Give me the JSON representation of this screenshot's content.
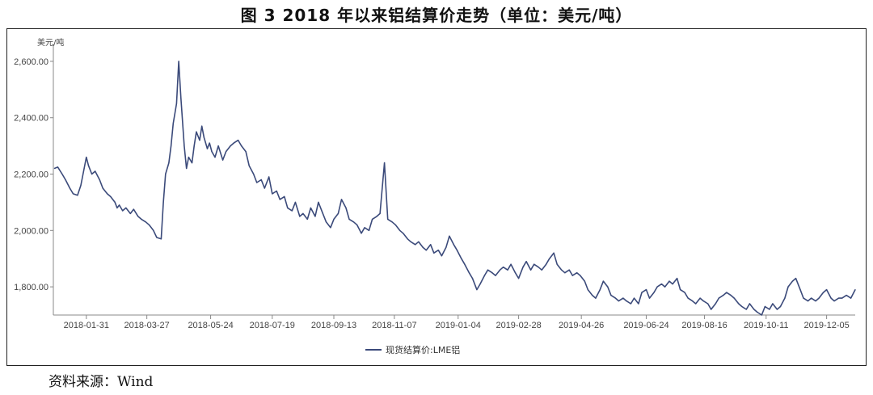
{
  "title": "图 3   2018 年以来铝结算价走势（单位：美元/吨）",
  "source": "资料来源：Wind",
  "colors": {
    "line": "#3b4a7a",
    "axis": "#888888"
  },
  "chart_data": {
    "type": "line",
    "unit_label": "美元/吨",
    "ylim": [
      1700,
      2660
    ],
    "yticks": [
      1800,
      2000,
      2200,
      2400,
      2600
    ],
    "ytick_labels": [
      "1,800.00",
      "2,000.00",
      "2,200.00",
      "2,400.00",
      "2,600.00"
    ],
    "xlim": [
      "2018-01-01",
      "2019-12-31"
    ],
    "xtick_labels": [
      "2018-01-31",
      "2018-03-27",
      "2018-05-24",
      "2018-07-19",
      "2018-09-13",
      "2018-11-07",
      "2019-01-04",
      "2019-02-28",
      "2019-04-26",
      "2019-06-24",
      "2019-08-16",
      "2019-10-11",
      "2019-12-05"
    ],
    "legend": "bottom-center",
    "grid": false,
    "series": [
      {
        "name": "现货结算价:LME铝",
        "points": [
          [
            "2018-01-02",
            2220
          ],
          [
            "2018-01-05",
            2225
          ],
          [
            "2018-01-09",
            2200
          ],
          [
            "2018-01-12",
            2180
          ],
          [
            "2018-01-16",
            2150
          ],
          [
            "2018-01-19",
            2130
          ],
          [
            "2018-01-23",
            2125
          ],
          [
            "2018-01-26",
            2160
          ],
          [
            "2018-01-29",
            2220
          ],
          [
            "2018-01-31",
            2260
          ],
          [
            "2018-02-02",
            2230
          ],
          [
            "2018-02-05",
            2200
          ],
          [
            "2018-02-08",
            2210
          ],
          [
            "2018-02-12",
            2180
          ],
          [
            "2018-02-15",
            2150
          ],
          [
            "2018-02-19",
            2130
          ],
          [
            "2018-02-22",
            2120
          ],
          [
            "2018-02-26",
            2100
          ],
          [
            "2018-02-28",
            2080
          ],
          [
            "2018-03-02",
            2090
          ],
          [
            "2018-03-05",
            2070
          ],
          [
            "2018-03-08",
            2080
          ],
          [
            "2018-03-12",
            2060
          ],
          [
            "2018-03-15",
            2075
          ],
          [
            "2018-03-19",
            2050
          ],
          [
            "2018-03-22",
            2040
          ],
          [
            "2018-03-26",
            2030
          ],
          [
            "2018-03-29",
            2020
          ],
          [
            "2018-04-02",
            2000
          ],
          [
            "2018-04-05",
            1975
          ],
          [
            "2018-04-09",
            1970
          ],
          [
            "2018-04-11",
            2100
          ],
          [
            "2018-04-13",
            2200
          ],
          [
            "2018-04-16",
            2240
          ],
          [
            "2018-04-18",
            2300
          ],
          [
            "2018-04-20",
            2380
          ],
          [
            "2018-04-23",
            2450
          ],
          [
            "2018-04-25",
            2600
          ],
          [
            "2018-04-27",
            2470
          ],
          [
            "2018-04-30",
            2300
          ],
          [
            "2018-05-02",
            2220
          ],
          [
            "2018-05-04",
            2260
          ],
          [
            "2018-05-07",
            2240
          ],
          [
            "2018-05-09",
            2300
          ],
          [
            "2018-05-11",
            2350
          ],
          [
            "2018-05-14",
            2320
          ],
          [
            "2018-05-16",
            2370
          ],
          [
            "2018-05-18",
            2330
          ],
          [
            "2018-05-21",
            2290
          ],
          [
            "2018-05-23",
            2310
          ],
          [
            "2018-05-25",
            2280
          ],
          [
            "2018-05-28",
            2260
          ],
          [
            "2018-05-31",
            2300
          ],
          [
            "2018-06-04",
            2250
          ],
          [
            "2018-06-07",
            2280
          ],
          [
            "2018-06-11",
            2300
          ],
          [
            "2018-06-14",
            2310
          ],
          [
            "2018-06-18",
            2320
          ],
          [
            "2018-06-21",
            2300
          ],
          [
            "2018-06-25",
            2280
          ],
          [
            "2018-06-28",
            2230
          ],
          [
            "2018-07-02",
            2200
          ],
          [
            "2018-07-05",
            2170
          ],
          [
            "2018-07-09",
            2180
          ],
          [
            "2018-07-12",
            2150
          ],
          [
            "2018-07-16",
            2190
          ],
          [
            "2018-07-19",
            2130
          ],
          [
            "2018-07-23",
            2140
          ],
          [
            "2018-07-26",
            2110
          ],
          [
            "2018-07-30",
            2120
          ],
          [
            "2018-08-02",
            2080
          ],
          [
            "2018-08-06",
            2070
          ],
          [
            "2018-08-09",
            2100
          ],
          [
            "2018-08-13",
            2050
          ],
          [
            "2018-08-16",
            2060
          ],
          [
            "2018-08-20",
            2040
          ],
          [
            "2018-08-23",
            2080
          ],
          [
            "2018-08-27",
            2050
          ],
          [
            "2018-08-30",
            2100
          ],
          [
            "2018-09-03",
            2060
          ],
          [
            "2018-09-06",
            2030
          ],
          [
            "2018-09-10",
            2010
          ],
          [
            "2018-09-13",
            2040
          ],
          [
            "2018-09-17",
            2060
          ],
          [
            "2018-09-20",
            2110
          ],
          [
            "2018-09-24",
            2080
          ],
          [
            "2018-09-27",
            2040
          ],
          [
            "2018-10-01",
            2030
          ],
          [
            "2018-10-04",
            2020
          ],
          [
            "2018-10-08",
            1990
          ],
          [
            "2018-10-11",
            2010
          ],
          [
            "2018-10-15",
            2000
          ],
          [
            "2018-10-18",
            2040
          ],
          [
            "2018-10-22",
            2050
          ],
          [
            "2018-10-25",
            2060
          ],
          [
            "2018-10-29",
            2240
          ],
          [
            "2018-11-01",
            2040
          ],
          [
            "2018-11-05",
            2030
          ],
          [
            "2018-11-08",
            2020
          ],
          [
            "2018-11-12",
            2000
          ],
          [
            "2018-11-15",
            1990
          ],
          [
            "2018-11-19",
            1970
          ],
          [
            "2018-11-22",
            1960
          ],
          [
            "2018-11-26",
            1950
          ],
          [
            "2018-11-29",
            1960
          ],
          [
            "2018-12-03",
            1940
          ],
          [
            "2018-12-06",
            1930
          ],
          [
            "2018-12-10",
            1950
          ],
          [
            "2018-12-13",
            1920
          ],
          [
            "2018-12-17",
            1930
          ],
          [
            "2018-12-20",
            1910
          ],
          [
            "2018-12-24",
            1940
          ],
          [
            "2018-12-27",
            1980
          ],
          [
            "2018-12-31",
            1950
          ],
          [
            "2019-01-03",
            1930
          ],
          [
            "2019-01-07",
            1900
          ],
          [
            "2019-01-10",
            1880
          ],
          [
            "2019-01-14",
            1850
          ],
          [
            "2019-01-17",
            1830
          ],
          [
            "2019-01-21",
            1790
          ],
          [
            "2019-01-24",
            1810
          ],
          [
            "2019-01-28",
            1840
          ],
          [
            "2019-01-31",
            1860
          ],
          [
            "2019-02-04",
            1850
          ],
          [
            "2019-02-07",
            1840
          ],
          [
            "2019-02-11",
            1860
          ],
          [
            "2019-02-14",
            1870
          ],
          [
            "2019-02-18",
            1860
          ],
          [
            "2019-02-21",
            1880
          ],
          [
            "2019-02-25",
            1850
          ],
          [
            "2019-02-28",
            1830
          ],
          [
            "2019-03-04",
            1870
          ],
          [
            "2019-03-07",
            1890
          ],
          [
            "2019-03-11",
            1860
          ],
          [
            "2019-03-14",
            1880
          ],
          [
            "2019-03-18",
            1870
          ],
          [
            "2019-03-21",
            1860
          ],
          [
            "2019-03-25",
            1880
          ],
          [
            "2019-03-28",
            1900
          ],
          [
            "2019-04-01",
            1920
          ],
          [
            "2019-04-04",
            1880
          ],
          [
            "2019-04-08",
            1860
          ],
          [
            "2019-04-11",
            1850
          ],
          [
            "2019-04-15",
            1860
          ],
          [
            "2019-04-18",
            1840
          ],
          [
            "2019-04-22",
            1850
          ],
          [
            "2019-04-25",
            1840
          ],
          [
            "2019-04-29",
            1820
          ],
          [
            "2019-05-02",
            1790
          ],
          [
            "2019-05-06",
            1770
          ],
          [
            "2019-05-09",
            1760
          ],
          [
            "2019-05-13",
            1790
          ],
          [
            "2019-05-16",
            1820
          ],
          [
            "2019-05-20",
            1800
          ],
          [
            "2019-05-23",
            1770
          ],
          [
            "2019-05-27",
            1760
          ],
          [
            "2019-05-30",
            1750
          ],
          [
            "2019-06-03",
            1760
          ],
          [
            "2019-06-06",
            1750
          ],
          [
            "2019-06-10",
            1740
          ],
          [
            "2019-06-13",
            1760
          ],
          [
            "2019-06-17",
            1740
          ],
          [
            "2019-06-20",
            1780
          ],
          [
            "2019-06-24",
            1790
          ],
          [
            "2019-06-27",
            1760
          ],
          [
            "2019-07-01",
            1780
          ],
          [
            "2019-07-04",
            1800
          ],
          [
            "2019-07-08",
            1810
          ],
          [
            "2019-07-11",
            1800
          ],
          [
            "2019-07-15",
            1820
          ],
          [
            "2019-07-18",
            1810
          ],
          [
            "2019-07-22",
            1830
          ],
          [
            "2019-07-25",
            1790
          ],
          [
            "2019-07-29",
            1780
          ],
          [
            "2019-08-01",
            1760
          ],
          [
            "2019-08-05",
            1750
          ],
          [
            "2019-08-08",
            1740
          ],
          [
            "2019-08-12",
            1760
          ],
          [
            "2019-08-15",
            1750
          ],
          [
            "2019-08-19",
            1740
          ],
          [
            "2019-08-22",
            1720
          ],
          [
            "2019-08-26",
            1740
          ],
          [
            "2019-08-29",
            1760
          ],
          [
            "2019-09-02",
            1770
          ],
          [
            "2019-09-05",
            1780
          ],
          [
            "2019-09-09",
            1770
          ],
          [
            "2019-09-12",
            1760
          ],
          [
            "2019-09-16",
            1740
          ],
          [
            "2019-09-19",
            1730
          ],
          [
            "2019-09-23",
            1720
          ],
          [
            "2019-09-26",
            1740
          ],
          [
            "2019-09-30",
            1720
          ],
          [
            "2019-10-03",
            1710
          ],
          [
            "2019-10-07",
            1700
          ],
          [
            "2019-10-10",
            1730
          ],
          [
            "2019-10-14",
            1720
          ],
          [
            "2019-10-17",
            1740
          ],
          [
            "2019-10-21",
            1720
          ],
          [
            "2019-10-24",
            1730
          ],
          [
            "2019-10-28",
            1760
          ],
          [
            "2019-10-31",
            1800
          ],
          [
            "2019-11-04",
            1820
          ],
          [
            "2019-11-07",
            1830
          ],
          [
            "2019-11-11",
            1790
          ],
          [
            "2019-11-14",
            1760
          ],
          [
            "2019-11-18",
            1750
          ],
          [
            "2019-11-21",
            1760
          ],
          [
            "2019-11-25",
            1750
          ],
          [
            "2019-11-28",
            1760
          ],
          [
            "2019-12-02",
            1780
          ],
          [
            "2019-12-05",
            1790
          ],
          [
            "2019-12-09",
            1760
          ],
          [
            "2019-12-12",
            1750
          ],
          [
            "2019-12-16",
            1760
          ],
          [
            "2019-12-19",
            1760
          ],
          [
            "2019-12-23",
            1770
          ],
          [
            "2019-12-27",
            1760
          ],
          [
            "2019-12-31",
            1790
          ]
        ]
      }
    ]
  }
}
